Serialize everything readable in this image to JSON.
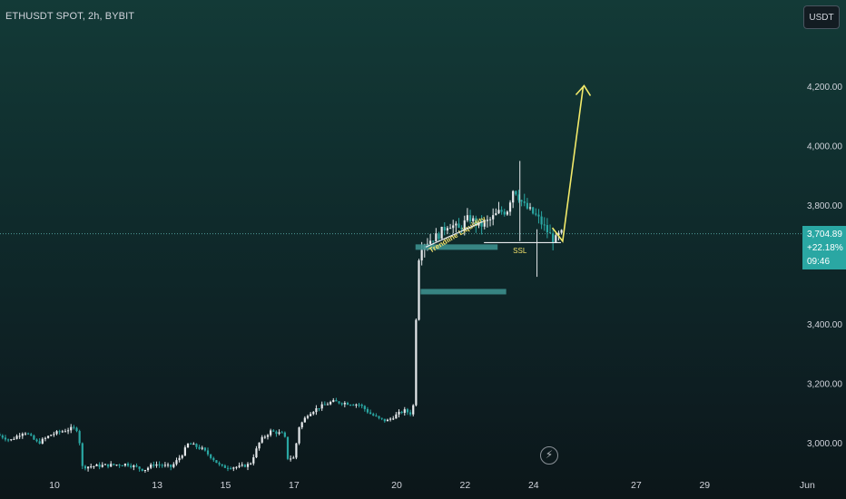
{
  "header": {
    "title": "ETHUSDT SPOT, 2h, BYBIT",
    "currency_button": "USDT"
  },
  "price_tag": {
    "price": "3,704.89",
    "change": "+22.18%",
    "countdown": "09:46"
  },
  "annotations": {
    "trendline_label": "Trendline Liquidity",
    "ssl_label": "SSL",
    "target_label": ""
  },
  "chart_data": {
    "type": "candlestick",
    "title": "ETHUSDT SPOT, 2h, BYBIT",
    "xlabel": "",
    "ylabel": "",
    "y_tick_labels": [
      "3,000.00",
      "3,200.00",
      "3,400.00",
      "3,800.00",
      "4,000.00",
      "4,200.00"
    ],
    "y_tick_values": [
      3000,
      3200,
      3400,
      3800,
      4000,
      4200
    ],
    "x_tick_labels": [
      "10",
      "13",
      "15",
      "17",
      "20",
      "22",
      "24",
      "27",
      "29",
      "Jun"
    ],
    "x_tick_days": [
      10,
      13,
      15,
      17,
      20,
      22,
      24,
      27,
      29,
      32
    ],
    "last_price": 3704.89,
    "grid": false,
    "price_path": [
      [
        8.4,
        3030
      ],
      [
        8.8,
        3010
      ],
      [
        9.2,
        3040
      ],
      [
        9.6,
        3000
      ],
      [
        10.0,
        3030
      ],
      [
        10.3,
        3040
      ],
      [
        10.6,
        3050
      ],
      [
        10.8,
        3045
      ],
      [
        10.85,
        2920
      ],
      [
        11.5,
        2925
      ],
      [
        12.2,
        2930
      ],
      [
        12.7,
        2910
      ],
      [
        13.0,
        2930
      ],
      [
        13.5,
        2920
      ],
      [
        13.8,
        2960
      ],
      [
        14.0,
        3000
      ],
      [
        14.4,
        2980
      ],
      [
        14.7,
        2950
      ],
      [
        14.95,
        2920
      ],
      [
        15.5,
        2920
      ],
      [
        15.8,
        2930
      ],
      [
        16.1,
        3010
      ],
      [
        16.4,
        3040
      ],
      [
        16.8,
        3030
      ],
      [
        16.9,
        2950
      ],
      [
        17.1,
        2950
      ],
      [
        17.2,
        3050
      ],
      [
        17.5,
        3100
      ],
      [
        17.8,
        3120
      ],
      [
        18.2,
        3140
      ],
      [
        18.6,
        3135
      ],
      [
        19.0,
        3130
      ],
      [
        19.3,
        3100
      ],
      [
        19.6,
        3080
      ],
      [
        19.8,
        3075
      ],
      [
        20.0,
        3090
      ],
      [
        20.3,
        3110
      ],
      [
        20.5,
        3100
      ],
      [
        20.6,
        3140
      ],
      [
        20.65,
        3420
      ],
      [
        20.75,
        3660
      ],
      [
        21.0,
        3680
      ],
      [
        21.3,
        3700
      ],
      [
        21.6,
        3740
      ],
      [
        21.9,
        3720
      ],
      [
        22.2,
        3760
      ],
      [
        22.5,
        3730
      ],
      [
        22.8,
        3750
      ],
      [
        23.1,
        3780
      ],
      [
        23.3,
        3780
      ],
      [
        23.5,
        3860
      ],
      [
        23.8,
        3800
      ],
      [
        24.0,
        3780
      ],
      [
        24.2,
        3760
      ],
      [
        24.5,
        3710
      ],
      [
        24.7,
        3680
      ],
      [
        24.85,
        3705
      ]
    ],
    "zones": [
      {
        "x_start": 20.55,
        "x_end": 22.95,
        "y": 3660
      },
      {
        "x_start": 20.7,
        "x_end": 23.2,
        "y": 3510
      }
    ],
    "ssl_level": {
      "x_start": 22.55,
      "x_end": 24.8,
      "y": 3675
    },
    "projection": [
      [
        24.85,
        3680
      ],
      [
        25.45,
        4200
      ]
    ]
  }
}
